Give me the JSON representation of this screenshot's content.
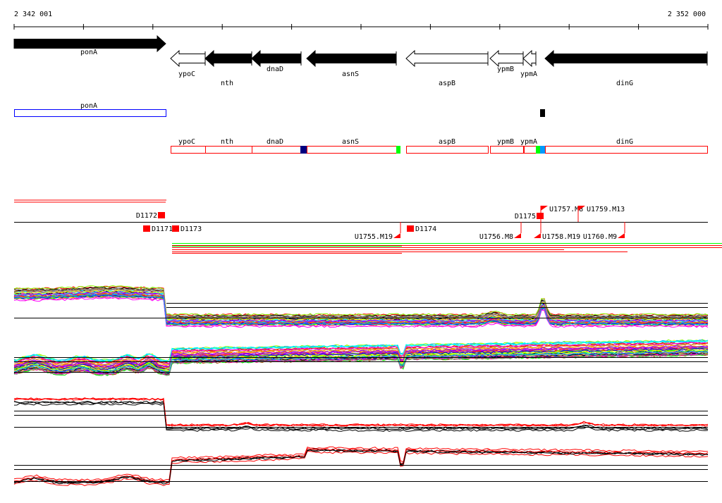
{
  "scale": {
    "start_label": "2 342 001",
    "end_label": "2 352 000"
  },
  "genes": [
    {
      "name": "ponA",
      "strand": "+",
      "filled": true
    },
    {
      "name": "ypoC",
      "strand": "-",
      "filled": false
    },
    {
      "name": "nth",
      "strand": "-",
      "filled": true
    },
    {
      "name": "dnaD",
      "strand": "-",
      "filled": true
    },
    {
      "name": "asnS",
      "strand": "-",
      "filled": true
    },
    {
      "name": "aspB",
      "strand": "-",
      "filled": false
    },
    {
      "name": "ypmB",
      "strand": "-",
      "filled": false
    },
    {
      "name": "ypmA",
      "strand": "-",
      "filled": false
    },
    {
      "name": "dinG",
      "strand": "-",
      "filled": true
    }
  ],
  "blue_track": {
    "label": "ponA"
  },
  "red_track": {
    "labels": [
      "ypoC",
      "nth",
      "dnaD",
      "asnS",
      "aspB",
      "ypmB",
      "ypmA",
      "dinG"
    ]
  },
  "features": {
    "above": [
      "D1172",
      "D1175",
      "U1757.M8",
      "U1759.M13"
    ],
    "below": [
      "D1171",
      "D1173",
      "U1755.M19",
      "D1174",
      "U1756.M8",
      "U1758.M19",
      "U1760.M9"
    ]
  },
  "colors": {
    "feature": "#ff0000",
    "gene_box": "#ff0000",
    "pona_box": "#0000ff",
    "series": [
      "#ff0000",
      "#00ff00",
      "#0000ff",
      "#ff00ff",
      "#00ffff",
      "#ffff00",
      "#888888",
      "#ff8800",
      "#8800ff",
      "#00aaff",
      "#aa5500",
      "#ff0088",
      "#88ff00",
      "#000000",
      "#b08080"
    ]
  }
}
